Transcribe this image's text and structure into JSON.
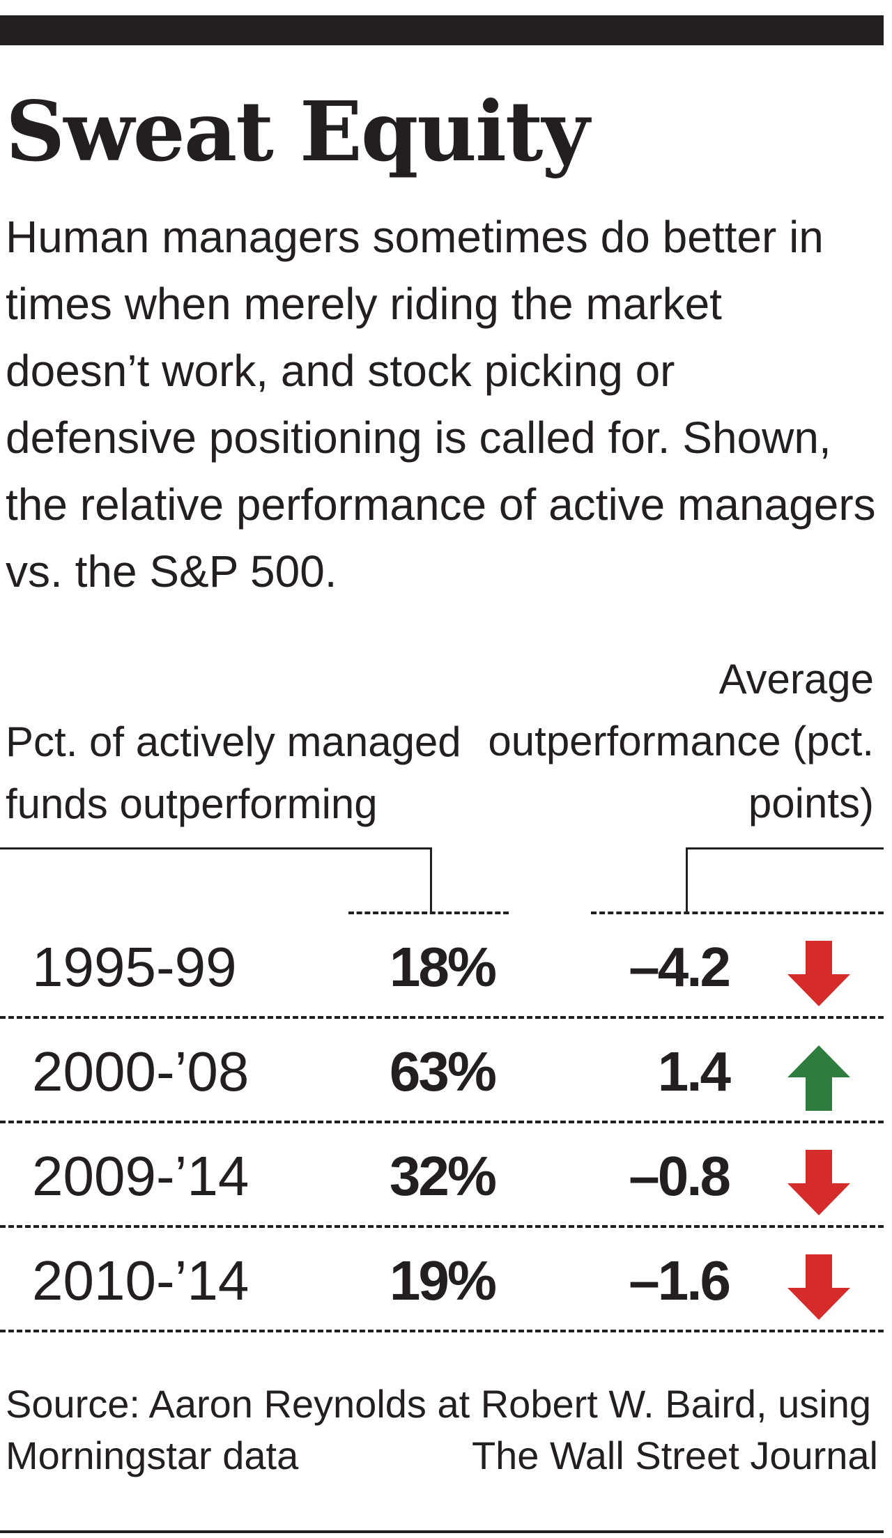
{
  "chart_data": {
    "type": "table",
    "title": "Sweat Equity",
    "subtitle": "Human managers sometimes do better in times when merely riding the market doesn’t work, and stock picking or defensive positioning is called for. Shown, the relative performance of active managers vs. the S&P 500.",
    "columns": [
      "Pct. of actively managed funds outperforming",
      "Average outperformance (pct. points)"
    ],
    "rows": [
      {
        "period": "1995-99",
        "pct_label": "18%",
        "pct": 18,
        "value_label": "–4.2",
        "value": -4.2,
        "direction": "down"
      },
      {
        "period": "2000-’08",
        "pct_label": "63%",
        "pct": 63,
        "value_label": "1.4",
        "value": 1.4,
        "direction": "up"
      },
      {
        "period": "2009-’14",
        "pct_label": "32%",
        "pct": 32,
        "value_label": "–0.8",
        "value": -0.8,
        "direction": "down"
      },
      {
        "period": "2010-’14",
        "pct_label": "19%",
        "pct": 19,
        "value_label": "–1.6",
        "value": -1.6,
        "direction": "down"
      }
    ],
    "source": "Source: Aaron Reynolds at Robert W. Baird, using Morningstar data",
    "credit": "The Wall Street Journal"
  },
  "colors": {
    "text": "#231f20",
    "up_arrow": "#2e7d3f",
    "down_arrow": "#d52b2b"
  },
  "icons": {
    "up": "arrow-up-icon",
    "down": "arrow-down-icon"
  }
}
